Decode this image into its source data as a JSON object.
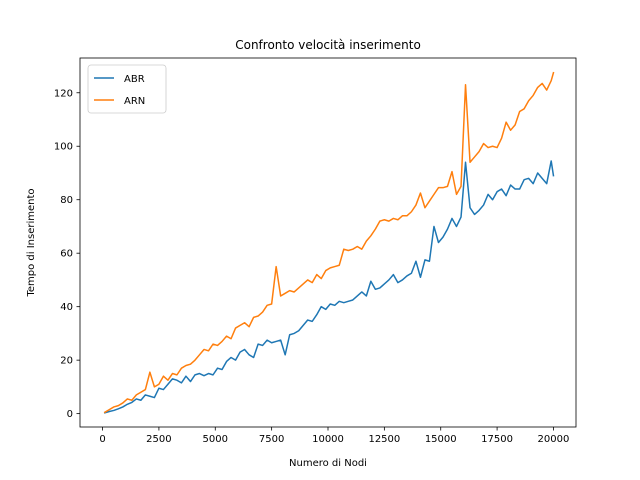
{
  "chart_data": {
    "type": "line",
    "title": "Confronto velocità inserimento",
    "xlabel": "Numero di Nodi",
    "ylabel": "Tempo di Inserimento",
    "xlim": [
      -1000,
      21000
    ],
    "ylim": [
      -5,
      133
    ],
    "xticks": [
      0,
      2500,
      5000,
      7500,
      10000,
      12500,
      15000,
      17500,
      20000
    ],
    "xtick_labels": [
      "0",
      "2500",
      "5000",
      "7500",
      "10000",
      "12500",
      "15000",
      "17500",
      "20000"
    ],
    "yticks": [
      0,
      20,
      40,
      60,
      80,
      100,
      120
    ],
    "ytick_labels": [
      "0",
      "20",
      "40",
      "60",
      "80",
      "100",
      "120"
    ],
    "grid": false,
    "legend_position": "top-left",
    "x": [
      100,
      300,
      500,
      700,
      900,
      1100,
      1300,
      1500,
      1700,
      1900,
      2100,
      2300,
      2500,
      2700,
      2900,
      3100,
      3300,
      3500,
      3700,
      3900,
      4100,
      4300,
      4500,
      4700,
      4900,
      5100,
      5300,
      5500,
      5700,
      5900,
      6100,
      6300,
      6500,
      6700,
      6900,
      7100,
      7300,
      7500,
      7700,
      7900,
      8100,
      8300,
      8500,
      8700,
      8900,
      9100,
      9300,
      9500,
      9700,
      9900,
      10100,
      10300,
      10500,
      10700,
      10900,
      11100,
      11300,
      11500,
      11700,
      11900,
      12100,
      12300,
      12500,
      12700,
      12900,
      13100,
      13300,
      13500,
      13700,
      13900,
      14100,
      14300,
      14500,
      14700,
      14900,
      15100,
      15300,
      15500,
      15700,
      15900,
      16100,
      16300,
      16500,
      16700,
      16900,
      17100,
      17300,
      17500,
      17700,
      17900,
      18100,
      18300,
      18500,
      18700,
      18900,
      19100,
      19300,
      19500,
      19700,
      19900,
      20000
    ],
    "series": [
      {
        "name": "ABR",
        "color": "#1f77b4",
        "values": [
          0.3,
          0.8,
          1.2,
          1.8,
          2.5,
          3.5,
          4.2,
          5.5,
          5.0,
          7.0,
          6.5,
          6.0,
          9.5,
          9.0,
          11.0,
          13.0,
          12.5,
          11.5,
          14.0,
          12.0,
          14.5,
          15.0,
          14.2,
          15.0,
          14.5,
          17.0,
          16.5,
          19.5,
          21.0,
          20.0,
          23.0,
          24.0,
          22.0,
          21.0,
          26.0,
          25.5,
          27.5,
          26.5,
          27.0,
          27.5,
          22.0,
          29.5,
          30.0,
          31.0,
          33.0,
          35.0,
          34.5,
          37.0,
          40.0,
          39.0,
          41.0,
          40.5,
          42.0,
          41.5,
          42.0,
          42.5,
          44.0,
          45.5,
          44.0,
          49.5,
          46.5,
          47.0,
          48.5,
          50.0,
          52.0,
          49.0,
          50.0,
          51.5,
          52.5,
          57.0,
          51.0,
          57.5,
          57.0,
          70.0,
          64.0,
          66.0,
          69.0,
          73.0,
          70.0,
          73.5,
          94.0,
          77.0,
          74.5,
          76.0,
          78.0,
          82.0,
          80.0,
          83.0,
          84.0,
          81.5,
          85.5,
          84.0,
          84.0,
          87.5,
          88.0,
          86.0,
          90.0,
          88.0,
          86.0,
          94.5,
          89.0
        ]
      },
      {
        "name": "ARN",
        "color": "#ff7f0e",
        "values": [
          0.5,
          1.5,
          2.5,
          3.0,
          4.0,
          5.5,
          5.0,
          7.0,
          8.0,
          9.0,
          15.5,
          10.0,
          11.0,
          14.0,
          12.5,
          15.0,
          14.5,
          17.0,
          18.0,
          18.5,
          20.0,
          22.0,
          24.0,
          23.5,
          26.0,
          25.5,
          27.0,
          29.0,
          28.0,
          32.0,
          33.0,
          34.0,
          32.5,
          36.0,
          36.5,
          38.0,
          40.5,
          41.0,
          55.0,
          44.0,
          45.0,
          46.0,
          45.5,
          47.0,
          48.5,
          50.0,
          49.0,
          52.0,
          50.5,
          53.5,
          54.5,
          55.0,
          55.5,
          61.5,
          61.0,
          61.5,
          62.5,
          61.5,
          64.5,
          66.5,
          69.0,
          72.0,
          72.5,
          72.0,
          73.0,
          72.5,
          74.0,
          74.0,
          75.5,
          78.0,
          82.5,
          77.0,
          79.5,
          82.0,
          84.5,
          84.5,
          85.0,
          90.5,
          82.0,
          85.0,
          123.0,
          94.0,
          96.0,
          98.0,
          101.0,
          99.5,
          100.0,
          99.5,
          103.0,
          109.0,
          106.0,
          108.0,
          113.0,
          114.0,
          117.0,
          119.0,
          122.0,
          123.5,
          121.0,
          124.5,
          127.5
        ]
      }
    ]
  }
}
